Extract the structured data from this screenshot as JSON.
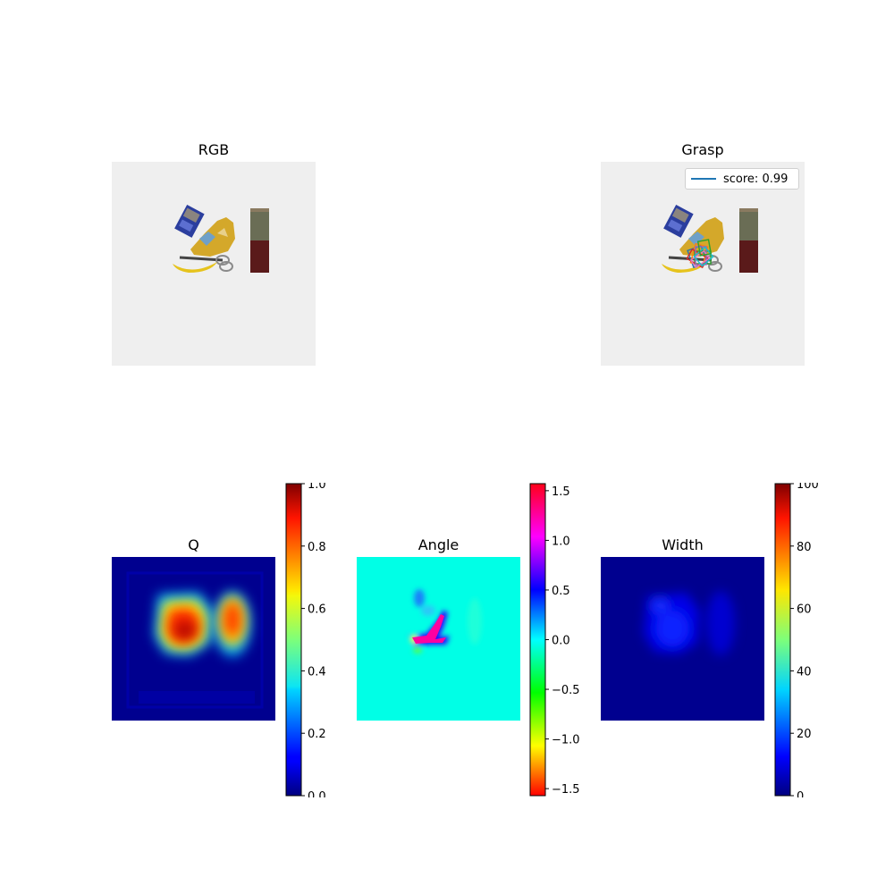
{
  "panels": {
    "rgb": {
      "title": "RGB"
    },
    "grasp": {
      "title": "Grasp",
      "legend": {
        "label": "score: 0.99",
        "color": "#1f77b4"
      }
    },
    "q": {
      "title": "Q",
      "colormap": "jet",
      "cbar_ticks": [
        "0.0",
        "0.2",
        "0.4",
        "0.6",
        "0.8",
        "1.0"
      ],
      "range": [
        0,
        1
      ]
    },
    "angle": {
      "title": "Angle",
      "colormap": "hsv",
      "cbar_ticks": [
        "−1.5",
        "−1.0",
        "−0.5",
        "0.0",
        "0.5",
        "1.0",
        "1.5"
      ],
      "range": [
        -1.5708,
        1.5708
      ]
    },
    "width": {
      "title": "Width",
      "colormap": "jet",
      "cbar_ticks": [
        "0",
        "20",
        "40",
        "60",
        "80",
        "100"
      ],
      "range": [
        0,
        100
      ]
    }
  },
  "chart_data": [
    {
      "type": "heatmap",
      "title": "RGB",
      "content": "tabletop image with objects: cereal box, mustard bottle, scissors, banana, cylindrical can"
    },
    {
      "type": "heatmap",
      "title": "Grasp",
      "legend": [
        "score: 0.99"
      ]
    },
    {
      "type": "heatmap",
      "title": "Q",
      "colorbar_range": [
        0,
        1
      ],
      "colorbar_ticks": [
        0.0,
        0.2,
        0.4,
        0.6,
        0.8,
        1.0
      ]
    },
    {
      "type": "heatmap",
      "title": "Angle",
      "colorbar_range": [
        -1.5708,
        1.5708
      ],
      "colorbar_ticks": [
        -1.5,
        -1.0,
        -0.5,
        0.0,
        0.5,
        1.0,
        1.5
      ]
    },
    {
      "type": "heatmap",
      "title": "Width",
      "colorbar_range": [
        0,
        100
      ],
      "colorbar_ticks": [
        0,
        20,
        40,
        60,
        80,
        100
      ]
    }
  ]
}
